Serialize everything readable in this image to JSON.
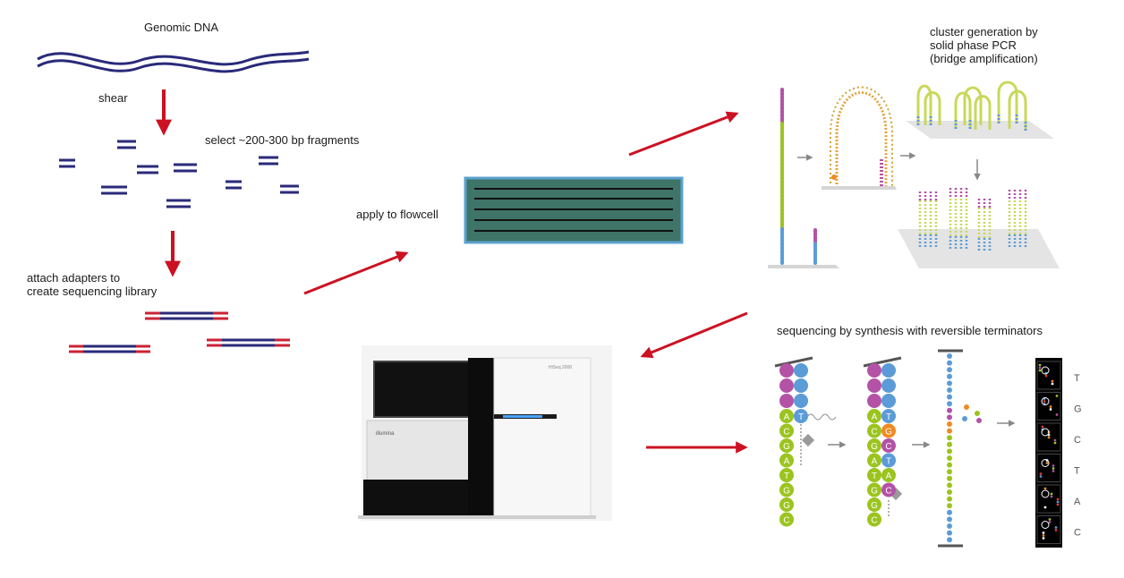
{
  "labels": {
    "genomic_dna": "Genomic DNA",
    "shear": "shear",
    "select_fragments": "select ~200-300 bp fragments",
    "attach_adapters": [
      "attach adapters to",
      "create sequencing library"
    ],
    "apply_to_flowcell": "apply to flowcell",
    "cluster_generation": [
      "cluster generation by",
      "solid phase PCR",
      "(bridge amplification)"
    ],
    "sequencing_by_synthesis": "sequencing by synthesis with reversible terminators"
  },
  "instrument": {
    "badge": "HiSeq 2000",
    "brand": "illumina"
  },
  "sbs_strand_1": [
    "A",
    "C",
    "G",
    "A",
    "T",
    "G",
    "G",
    "C"
  ],
  "sbs_strand_1_incoming": "T",
  "sbs_strand_2_template": [
    "A",
    "C",
    "G",
    "A",
    "T",
    "G",
    "G",
    "C"
  ],
  "sbs_strand_2_synth": [
    "T",
    "G",
    "C",
    "T",
    "A",
    "C"
  ],
  "base_calls": [
    "T",
    "G",
    "C",
    "T",
    "A",
    "C"
  ],
  "colors": {
    "arrow": "#cc1122",
    "dna": "#2a2a7a",
    "adapter": "#cc2233",
    "flowcell_fill": "#3f7468",
    "flowcell_border": "#5ba2cf",
    "nuc_A": "#9bc41e",
    "nuc_T": "#5b9bd8",
    "nuc_G": "#f08a22",
    "nuc_C": "#b452a6"
  }
}
